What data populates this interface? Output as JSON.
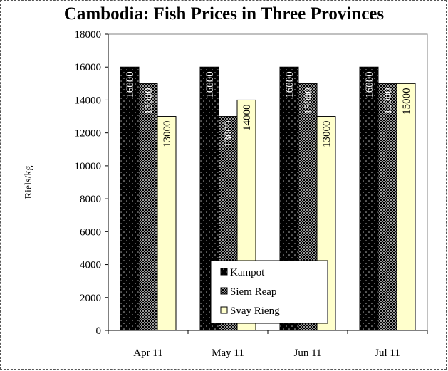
{
  "chart_data": {
    "type": "bar",
    "title": "Cambodia: Fish Prices in Three Provinces",
    "xlabel": "",
    "ylabel": "Riels/kg",
    "categories": [
      "Apr 11",
      "May 11",
      "Jun 11",
      "Jul 11"
    ],
    "series": [
      {
        "name": "Kampot",
        "values": [
          16000,
          16000,
          16000,
          16000
        ],
        "pattern": "black-dots",
        "color": "#000000"
      },
      {
        "name": "Siem Reap",
        "values": [
          15000,
          13000,
          15000,
          15000
        ],
        "pattern": "checker",
        "color": "#333333"
      },
      {
        "name": "Svay Rieng",
        "values": [
          13000,
          14000,
          13000,
          15000
        ],
        "pattern": "solid",
        "color": "#ffffcc"
      }
    ],
    "data_labels": [
      [
        "16000",
        "16000",
        "16000",
        "16000"
      ],
      [
        "15000",
        "13000",
        "15000",
        "15000"
      ],
      [
        "13000",
        "14000",
        "13000",
        "15000"
      ]
    ],
    "yticks": [
      "0",
      "2000",
      "4000",
      "6000",
      "8000",
      "10000",
      "12000",
      "14000",
      "16000",
      "18000"
    ],
    "ylim": [
      0,
      18000
    ],
    "grid": false,
    "legend_position": "bottom-right"
  }
}
